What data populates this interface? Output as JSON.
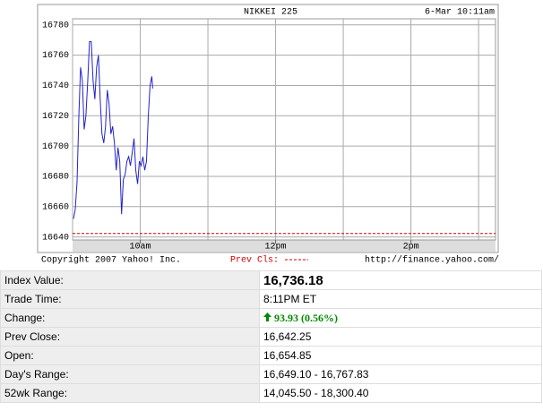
{
  "chart_data": {
    "type": "line",
    "title": "NIKKEI 225",
    "timestamp": "6-Mar 10:11am",
    "copyright": "Copyright 2007 Yahoo! Inc.",
    "source": "http://finance.yahoo.com/",
    "prev_close_label": "Prev Cls:",
    "prev_close": 16642.25,
    "xlim": [
      9,
      15.25
    ],
    "xticks": [
      {
        "value": 10,
        "label": "10am"
      },
      {
        "value": 12,
        "label": "12pm"
      },
      {
        "value": 14,
        "label": "2pm"
      }
    ],
    "xgrid": [
      9,
      10,
      11,
      12,
      13,
      14,
      15
    ],
    "ylim": [
      16638,
      16784
    ],
    "yticks": [
      16640,
      16660,
      16680,
      16700,
      16720,
      16740,
      16760,
      16780
    ],
    "grid": true,
    "series": [
      {
        "color": "#2222cc",
        "x": [
          9.013,
          9.039,
          9.066,
          9.092,
          9.118,
          9.145,
          9.171,
          9.197,
          9.224,
          9.25,
          9.276,
          9.303,
          9.329,
          9.355,
          9.382,
          9.408,
          9.434,
          9.461,
          9.487,
          9.513,
          9.539,
          9.566,
          9.592,
          9.618,
          9.645,
          9.671,
          9.697,
          9.724,
          9.75,
          9.776,
          9.803,
          9.829,
          9.855,
          9.882,
          9.908,
          9.934,
          9.961,
          9.987,
          10.013,
          10.039,
          10.066,
          10.092,
          10.118,
          10.145,
          10.171,
          10.184
        ],
        "values": [
          16652,
          16658,
          16676,
          16719,
          16752,
          16743,
          16711,
          16720,
          16743,
          16769,
          16769,
          16743,
          16731,
          16752,
          16760,
          16731,
          16708,
          16702,
          16713,
          16737,
          16728,
          16708,
          16713,
          16702,
          16684,
          16699,
          16690,
          16655,
          16678,
          16681,
          16690,
          16693,
          16687,
          16696,
          16705,
          16684,
          16675,
          16690,
          16687,
          16693,
          16684,
          16690,
          16719,
          16740,
          16746,
          16738
        ]
      }
    ]
  },
  "table": {
    "rows": [
      [
        "Index Value:",
        "16,736.18"
      ],
      [
        "Trade Time:",
        "8:11PM ET"
      ],
      [
        "Change:",
        "93.93 (0.56%)"
      ],
      [
        "Prev Close:",
        "16,642.25"
      ],
      [
        "Open:",
        "16,654.85"
      ],
      [
        "Day's Range:",
        "16,649.10 - 16,767.83"
      ],
      [
        "52wk Range:",
        "14,045.50 - 18,300.40"
      ]
    ]
  }
}
